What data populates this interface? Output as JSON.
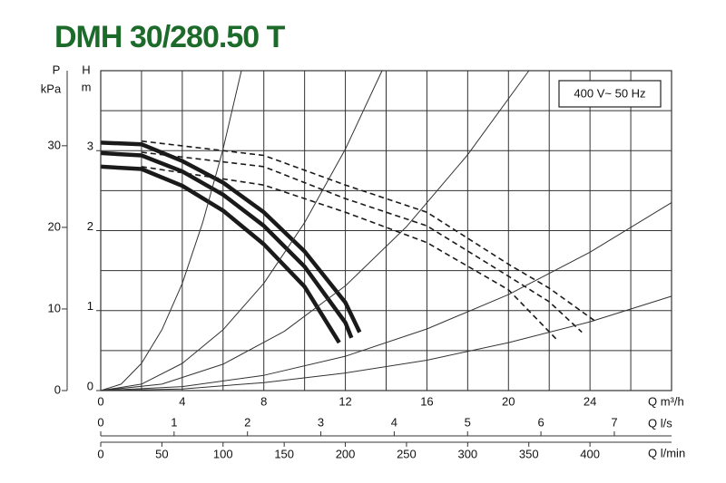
{
  "chart_data": {
    "type": "line",
    "title": "DMH 30/280.50 T",
    "annotation": "400 V~ 50 Hz",
    "xlabel": "Q m³/h",
    "ylabel": "H",
    "yunit": "m",
    "y2label": "P",
    "y2unit": "kPa",
    "x2label": "Q l/s",
    "x3label": "Q l/min",
    "xlim": [
      0,
      28
    ],
    "xticks": [
      0,
      4,
      8,
      12,
      16,
      20,
      24
    ],
    "xgrid": [
      0,
      2,
      4,
      6,
      8,
      10,
      12,
      14,
      16,
      18,
      20,
      22,
      24,
      26,
      28
    ],
    "ylim": [
      0,
      4
    ],
    "yticks": [
      0,
      1,
      2,
      3
    ],
    "ygrid": [
      0,
      0.5,
      1,
      1.5,
      2,
      2.5,
      3,
      3.5,
      4
    ],
    "y2lim": [
      0,
      39.2
    ],
    "y2ticks": [
      0,
      10,
      20,
      30
    ],
    "x2lim": [
      0,
      7.78
    ],
    "x2ticks": [
      0,
      1,
      2,
      3,
      4,
      5,
      6,
      7
    ],
    "x3lim": [
      0,
      466.7
    ],
    "x3ticks": [
      0,
      50,
      100,
      150,
      200,
      250,
      300,
      350,
      400
    ],
    "series": [
      {
        "color": "#1a1a1a",
        "style": "solid",
        "x": [
          0,
          2,
          4,
          6,
          8,
          10,
          12,
          12.7
        ],
        "values": [
          3.1,
          3.08,
          2.87,
          2.6,
          2.23,
          1.74,
          1.1,
          0.73
        ]
      },
      {
        "color": "#1a1a1a",
        "style": "solid",
        "x": [
          0,
          2,
          4,
          6,
          8,
          10,
          12,
          12.3
        ],
        "values": [
          2.97,
          2.94,
          2.74,
          2.45,
          2.06,
          1.55,
          0.85,
          0.66
        ]
      },
      {
        "color": "#1a1a1a",
        "style": "solid",
        "x": [
          0,
          2,
          4,
          6,
          8,
          10,
          11.7
        ],
        "values": [
          2.8,
          2.77,
          2.56,
          2.25,
          1.83,
          1.3,
          0.6
        ]
      },
      {
        "color": "#1a1a1a",
        "style": "dashed",
        "x": [
          2,
          8,
          12,
          16,
          20,
          22,
          24.3
        ],
        "values": [
          3.12,
          2.94,
          2.57,
          2.23,
          1.58,
          1.28,
          0.86
        ]
      },
      {
        "color": "#1a1a1a",
        "style": "dashed",
        "x": [
          2,
          8,
          12,
          16,
          20,
          22,
          23.6
        ],
        "values": [
          2.98,
          2.8,
          2.4,
          2.06,
          1.43,
          1.11,
          0.73
        ]
      },
      {
        "color": "#1a1a1a",
        "style": "dashed",
        "x": [
          2,
          8,
          12,
          16,
          20,
          22.4
        ],
        "values": [
          2.8,
          2.57,
          2.23,
          1.85,
          1.26,
          0.63
        ]
      },
      {
        "color": "#333333",
        "style": "thin",
        "x": [
          0,
          1,
          2,
          3,
          4,
          5,
          6,
          6.9
        ],
        "values": [
          0,
          0.08,
          0.34,
          0.76,
          1.34,
          2.1,
          3.02,
          4
        ]
      },
      {
        "color": "#333333",
        "style": "thin",
        "x": [
          0,
          2,
          4,
          6,
          8,
          10,
          12,
          13.8
        ],
        "values": [
          0,
          0.08,
          0.34,
          0.76,
          1.34,
          2.1,
          3.02,
          4
        ]
      },
      {
        "color": "#333333",
        "style": "thin",
        "x": [
          0,
          3,
          6,
          9,
          12,
          15,
          18,
          21
        ],
        "values": [
          0,
          0.08,
          0.33,
          0.74,
          1.31,
          2.05,
          2.95,
          4
        ]
      },
      {
        "color": "#333333",
        "style": "thin",
        "x": [
          0,
          4,
          8,
          12,
          16,
          20,
          24,
          28
        ],
        "values": [
          0,
          0.05,
          0.19,
          0.43,
          0.77,
          1.2,
          1.73,
          2.35
        ]
      },
      {
        "color": "#333333",
        "style": "thin",
        "x": [
          0,
          4,
          8,
          12,
          16,
          20,
          24,
          28
        ],
        "values": [
          0,
          0.02,
          0.1,
          0.22,
          0.38,
          0.6,
          0.86,
          1.18
        ]
      }
    ]
  }
}
